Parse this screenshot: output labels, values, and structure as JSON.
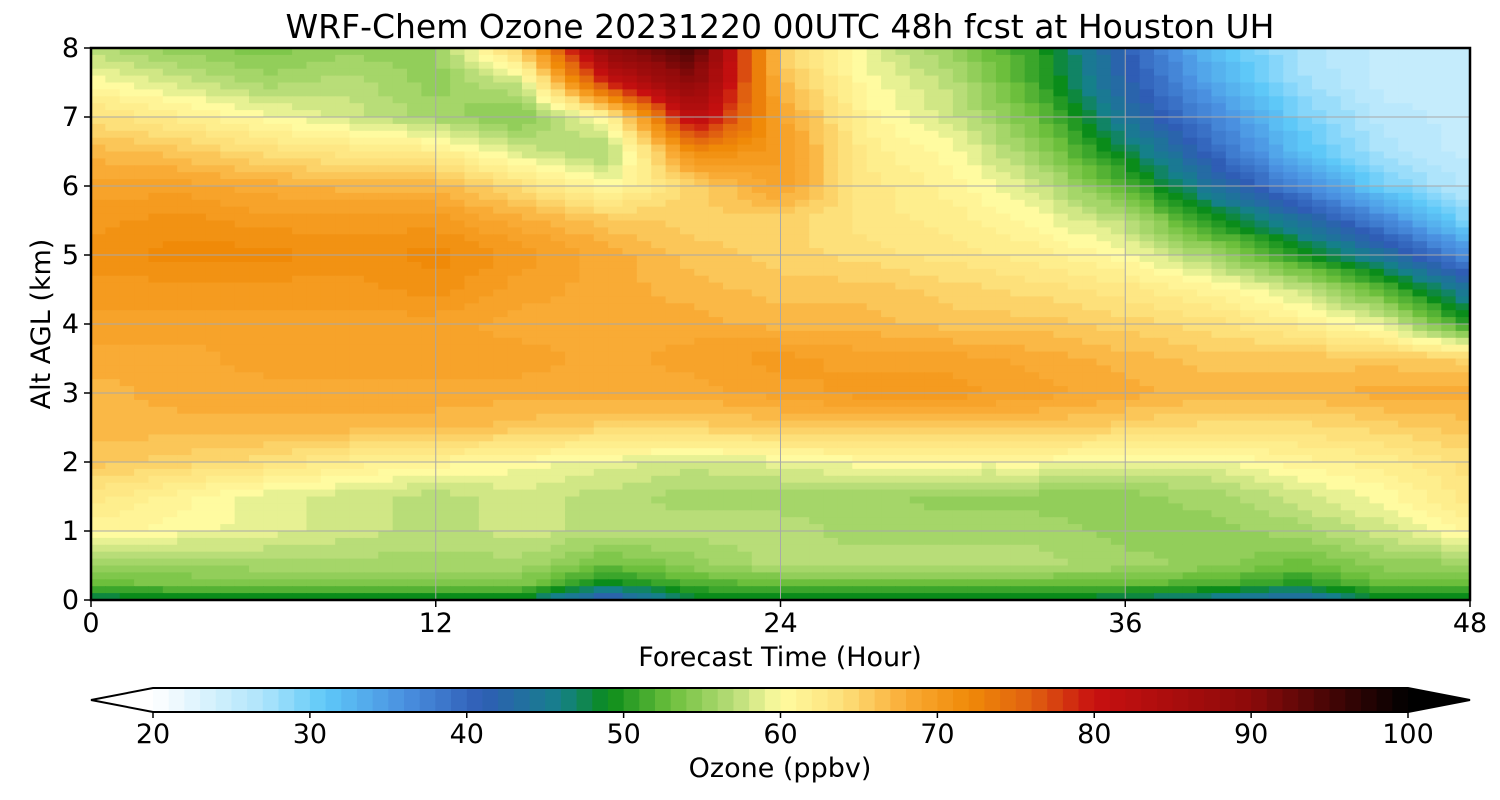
{
  "chart_data": {
    "type": "heatmap",
    "title": "WRF-Chem Ozone  20231220 00UTC 48h fcst at Houston UH",
    "xlabel": "Forecast Time (Hour)",
    "ylabel": "Alt AGL (km)",
    "xlim": [
      0,
      48
    ],
    "ylim": [
      0,
      8
    ],
    "xticks": [
      "0",
      "12",
      "24",
      "36",
      "48"
    ],
    "yticks": [
      "0",
      "1",
      "2",
      "3",
      "4",
      "5",
      "6",
      "7",
      "8"
    ],
    "grid": true,
    "colorbar": {
      "label": "Ozone  (ppbv)",
      "min": 20,
      "max": 100,
      "ticks": [
        "20",
        "30",
        "40",
        "50",
        "60",
        "70",
        "80",
        "90",
        "100"
      ],
      "extend": "both",
      "colors": {
        "stops": [
          [
            20,
            "#ffffff"
          ],
          [
            27,
            "#aee4fb"
          ],
          [
            31,
            "#5ec8f8"
          ],
          [
            36,
            "#4a90e0"
          ],
          [
            41,
            "#2f5db5"
          ],
          [
            46,
            "#15808a"
          ],
          [
            49,
            "#0a8c1a"
          ],
          [
            53,
            "#6cbf3c"
          ],
          [
            57,
            "#b8dd78"
          ],
          [
            60,
            "#fffba0"
          ],
          [
            64,
            "#fde07a"
          ],
          [
            68,
            "#f9ab35"
          ],
          [
            72,
            "#f08a08"
          ],
          [
            76,
            "#e06010"
          ],
          [
            80,
            "#c81010"
          ],
          [
            90,
            "#8c0a0a"
          ],
          [
            100,
            "#000000"
          ]
        ]
      }
    },
    "x_hours": [
      0,
      3,
      6,
      9,
      12,
      15,
      18,
      21,
      24,
      27,
      30,
      33,
      36,
      39,
      42,
      45,
      48
    ],
    "y_km": [
      0,
      0.25,
      0.5,
      1,
      1.5,
      2,
      2.5,
      3,
      3.5,
      4,
      4.5,
      5,
      5.5,
      6,
      6.5,
      7,
      7.5,
      8
    ],
    "values_ppbv": [
      [
        47,
        48,
        48,
        48,
        48,
        48,
        40,
        48,
        48,
        48,
        48,
        48,
        47,
        45,
        42,
        48,
        48
      ],
      [
        53,
        54,
        54,
        54,
        54,
        54,
        49,
        52,
        53,
        53,
        53,
        53,
        53,
        52,
        50,
        53,
        53
      ],
      [
        55,
        55,
        56,
        56,
        56,
        56,
        53,
        55,
        57,
        57,
        57,
        57,
        56,
        55,
        53,
        55,
        55
      ],
      [
        61,
        60,
        59,
        58,
        57,
        58,
        57,
        57,
        57,
        56,
        56,
        56,
        55,
        55,
        56,
        58,
        61
      ],
      [
        63,
        61,
        59,
        58,
        57,
        58,
        57,
        56,
        56,
        56,
        55,
        55,
        55,
        56,
        58,
        60,
        63
      ],
      [
        66,
        65,
        64,
        62,
        61,
        60,
        59,
        58,
        59,
        60,
        60,
        60,
        59,
        59,
        61,
        62,
        64
      ],
      [
        67,
        67,
        67,
        67,
        67,
        66,
        65,
        65,
        66,
        66,
        66,
        66,
        65,
        64,
        64,
        65,
        66
      ],
      [
        67,
        68,
        68,
        68,
        68,
        68,
        68,
        68,
        69,
        70,
        70,
        69,
        68,
        67,
        67,
        68,
        68
      ],
      [
        68,
        68,
        69,
        69,
        69,
        69,
        68,
        69,
        70,
        69,
        69,
        68,
        67,
        66,
        66,
        66,
        65
      ],
      [
        69,
        69,
        69,
        69,
        69,
        68,
        68,
        68,
        67,
        67,
        66,
        66,
        65,
        64,
        62,
        59,
        50
      ],
      [
        70,
        70,
        70,
        70,
        71,
        69,
        68,
        67,
        66,
        66,
        65,
        64,
        63,
        61,
        58,
        52,
        44
      ],
      [
        71,
        72,
        72,
        71,
        72,
        70,
        68,
        66,
        65,
        64,
        63,
        62,
        60,
        56,
        50,
        44,
        36
      ],
      [
        70,
        71,
        70,
        70,
        70,
        68,
        66,
        65,
        65,
        63,
        62,
        60,
        57,
        50,
        44,
        37,
        29
      ],
      [
        69,
        69,
        68,
        67,
        67,
        64,
        60,
        65,
        69,
        63,
        61,
        58,
        52,
        44,
        37,
        30,
        26
      ],
      [
        67,
        66,
        64,
        63,
        62,
        58,
        56,
        72,
        70,
        62,
        60,
        55,
        48,
        40,
        32,
        27,
        25
      ],
      [
        64,
        62,
        60,
        58,
        56,
        54,
        61,
        83,
        69,
        61,
        58,
        53,
        44,
        37,
        30,
        26,
        25
      ],
      [
        60,
        58,
        56,
        57,
        55,
        58,
        80,
        90,
        67,
        60,
        57,
        51,
        42,
        34,
        28,
        25,
        25
      ],
      [
        57,
        55,
        54,
        55,
        55,
        66,
        90,
        95,
        65,
        59,
        55,
        50,
        41,
        32,
        27,
        25,
        25
      ]
    ]
  }
}
